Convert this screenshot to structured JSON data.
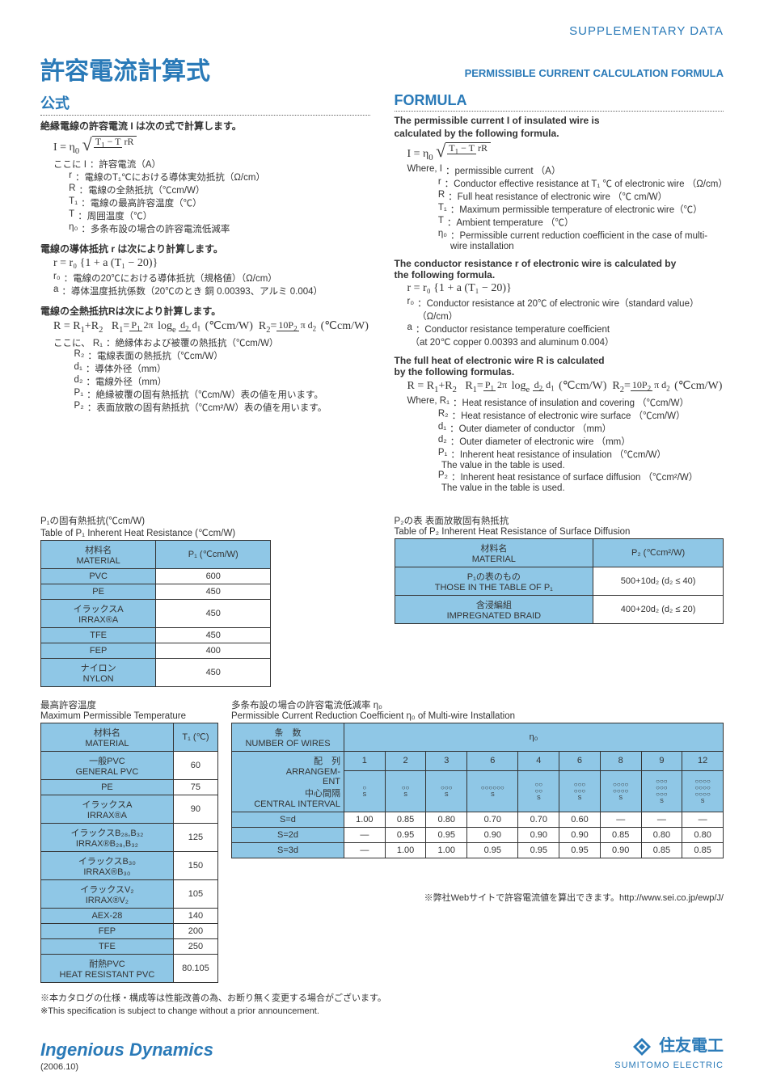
{
  "header": {
    "supplementary": "SUPPLEMENTARY DATA",
    "title_jp": "許容電流計算式",
    "title_en": "PERMISSIBLE CURRENT CALCULATION FORMULA"
  },
  "jp": {
    "sec": "公式",
    "lead1": "絶縁電線の許容電流 I は次の式で計算します。",
    "formula_I": "I = η₀ √((T₁ − T) / (rR))",
    "where_label": "ここに",
    "defs_I": [
      {
        "k": "I",
        "v": "：許容電流（A）"
      },
      {
        "k": "r",
        "v": "：電線のT₁℃における導体実効抵抗（Ω/cm）"
      },
      {
        "k": "R",
        "v": "：電線の全熱抵抗（℃cm/W）"
      },
      {
        "k": "T₁",
        "v": "：電線の最高許容温度（℃）"
      },
      {
        "k": "T",
        "v": "：周囲温度（℃）"
      },
      {
        "k": "η₀",
        "v": "：多条布設の場合の許容電流低減率"
      }
    ],
    "lead2": "電線の導体抵抗 r は次により計算します。",
    "formula_r": "r = r₀ {1 + a (T₁ − 20)}",
    "defs_r": [
      {
        "k": "r₀",
        "v": "：電線の20℃における導体抵抗（規格値）（Ω/cm）"
      },
      {
        "k": "a",
        "v": "：導体温度抵抗係数（20℃のとき 銅 0.00393、アルミ 0.004）"
      }
    ],
    "lead3": "電線の全熱抵抗Rは次により計算します。",
    "formula_R": "R = R₁ + R₂   R₁ = (P₁ / 2π) logₑ (d₂/d₁)  (℃cm/W)   R₂ = 10P₂ / (π d₂)  (℃cm/W)",
    "where_label2": "ここに、",
    "defs_R": [
      {
        "k": "R₁",
        "v": "：絶縁体および被覆の熱抵抗（℃cm/W）"
      },
      {
        "k": "R₂",
        "v": "：電線表面の熱抵抗（℃cm/W）"
      },
      {
        "k": "d₁",
        "v": "：導体外径（mm）"
      },
      {
        "k": "d₂",
        "v": "：電線外径（mm）"
      },
      {
        "k": "P₁",
        "v": "：絶縁被覆の固有熱抵抗（℃cm/W）表の値を用います。"
      },
      {
        "k": "P₂",
        "v": "：表面放散の固有熱抵抗（℃cm²/W）表の値を用います。"
      }
    ]
  },
  "en": {
    "sec": "FORMULA",
    "lead1a": "The permissible current I of insulated wire is",
    "lead1b": "calculated by the following formula.",
    "formula_I": "I = η₀ √((T₁ − T) / (rR))",
    "where_label": "Where,",
    "defs_I": [
      {
        "k": "I",
        "v": "：permissible current （A）"
      },
      {
        "k": "r",
        "v": "：Conductor effective resistance at T₁ ℃ of electronic wire （Ω/cm）"
      },
      {
        "k": "R",
        "v": "：Full heat resistance of electronic wire （℃ cm/W）"
      },
      {
        "k": "T₁",
        "v": "：Maximum permissible temperature of electronic wire（℃）"
      },
      {
        "k": "T",
        "v": "：Ambient temperature （℃）"
      },
      {
        "k": "η₀",
        "v": "：Permissible current reduction coefficient in the case of multi-wire installation"
      }
    ],
    "lead2a": "The conductor resistance r of electronic wire is calculated by",
    "lead2b": "the following formula.",
    "formula_r": "r = r₀ {1 + a (T₁ − 20)}",
    "defs_r": [
      {
        "k": "r₀",
        "v": "：Conductor resistance at 20℃ of electronic wire（standard value）（Ω/cm）"
      },
      {
        "k": "a",
        "v": "：Conductor resistance temperature coefficient"
      },
      {
        "k": "",
        "v": "（at 20℃ copper 0.00393 and aluminum 0.004）"
      }
    ],
    "lead3a": "The full heat of electronic wire R is calculated",
    "lead3b": "by the following formulas.",
    "formula_R": "R = R₁ + R₂   R₁ = (P₁ / 2π) logₑ (d₂/d₁)  (℃cm/W)   R₂ = 10P₂ / (π d₂)  (℃cm/W)",
    "where_label2": "Where,",
    "defs_R": [
      {
        "k": "R₁",
        "v": "：Heat resistance of insulation and covering （℃cm/W）"
      },
      {
        "k": "R₂",
        "v": "：Heat resistance of electronic wire surface （℃cm/W）"
      },
      {
        "k": "d₁",
        "v": "：Outer diameter of conductor （mm）"
      },
      {
        "k": "d₂",
        "v": "：Outer diameter of electronic wire （mm）"
      },
      {
        "k": "P₁",
        "v": "：Inherent heat resistance of insulation （℃cm/W）"
      },
      {
        "k": "",
        "v": "  The value in the table is used."
      },
      {
        "k": "P₂",
        "v": "：Inherent heat resistance of surface diffusion （℃cm²/W）"
      },
      {
        "k": "",
        "v": "  The value in the table is used."
      }
    ]
  },
  "p1_table": {
    "title_jp": "P₁の固有熱抵抗(℃cm/W)",
    "title_en": "Table of P₁ Inherent Heat Resistance (℃cm/W)",
    "head": [
      "材料名\nMATERIAL",
      "P₁ (℃cm/W)"
    ],
    "rows": [
      [
        "PVC",
        "600"
      ],
      [
        "PE",
        "450"
      ],
      [
        "イラックスA\nIRRAX®A",
        "450"
      ],
      [
        "TFE",
        "450"
      ],
      [
        "FEP",
        "400"
      ],
      [
        "ナイロン\nNYLON",
        "450"
      ]
    ]
  },
  "p2_table": {
    "title_jp": "P₂の表 表面放散固有熱抵抗",
    "title_en": "Table of P₂ Inherent Heat Resistance of Surface Diffusion",
    "head": [
      "材料名\nMATERIAL",
      "P₂ (℃cm²/W)"
    ],
    "rows": [
      [
        "P₁の表のもの\nTHOSE IN THE TABLE OF P₁",
        "500+10d₂ (d₂ ≤ 40)"
      ],
      [
        "含浸編組\nIMPREGNATED BRAID",
        "400+20d₂ (d₂ ≤ 20)"
      ]
    ]
  },
  "temp_table": {
    "title_jp": "最高許容温度",
    "title_en": "Maximum Permissible Temperature",
    "head": [
      "材料名\nMATERIAL",
      "T₁ (℃)"
    ],
    "rows": [
      [
        "一般PVC\nGENERAL PVC",
        "60"
      ],
      [
        "PE",
        "75"
      ],
      [
        "イラックスA\nIRRAX®A",
        "90"
      ],
      [
        "イラックスB₂₈,B₃₂\nIRRAX®B₂₈,B₃₂",
        "125"
      ],
      [
        "イラックスB₃₀\nIRRAX®B₃₀",
        "150"
      ],
      [
        "イラックスV₂\nIRRAX®V₂",
        "105"
      ],
      [
        "AEX-28",
        "140"
      ],
      [
        "FEP",
        "200"
      ],
      [
        "TFE",
        "250"
      ],
      [
        "耐熱PVC\nHEAT RESISTANT PVC",
        "80.105"
      ]
    ]
  },
  "coef_table": {
    "title_jp": "多条布設の場合の許容電流低減率 η₀",
    "title_en": "Permissible Current Reduction Coefficient η₀ of Multi-wire Installation",
    "row1_label": "条　数\nNUMBER OF WIRES",
    "eta": "η₀",
    "wires": [
      "1",
      "2",
      "3",
      "6",
      "4",
      "6",
      "8",
      "9",
      "12"
    ],
    "row2_label": "配　列\nARRANGEM-\nENT\n中心間隔\nCENTRAL INTERVAL",
    "arrangements": [
      "○",
      "○○",
      "○○○",
      "○○○○○○",
      "○○\n○○",
      "○○○\n○○○",
      "○○○○\n○○○○",
      "○○○\n○○○\n○○○",
      "○○○○\n○○○○\n○○○○"
    ],
    "data_labels": [
      "S=d",
      "S=2d",
      "S=3d"
    ],
    "data": [
      [
        "1.00",
        "0.85",
        "0.80",
        "0.70",
        "0.70",
        "0.60",
        "—",
        "—",
        "—"
      ],
      [
        "—",
        "0.95",
        "0.95",
        "0.90",
        "0.90",
        "0.90",
        "0.85",
        "0.80",
        "0.80"
      ],
      [
        "—",
        "1.00",
        "1.00",
        "0.95",
        "0.95",
        "0.95",
        "0.90",
        "0.85",
        "0.85"
      ]
    ]
  },
  "weblink": "※弊社Webサイトで許容電流値を算出できます。http://www.sei.co.jp/ewp/J/",
  "notes": [
    "※本カタログの仕様・構成等は性能改善の為、お断り無く変更する場合がございます。",
    "※This specification is subject to change without a prior announcement."
  ],
  "footer": {
    "brand": "Ingenious Dynamics",
    "year": "(2006.10)",
    "logo_jp": "住友電工",
    "logo_en": "SUMITOMO ELECTRIC"
  },
  "colors": {
    "accent": "#2a7ab8",
    "table_header": "#8fc7e6",
    "text": "#333333",
    "page_bg": "#ffffff",
    "outer_bg": "#eaeced"
  }
}
